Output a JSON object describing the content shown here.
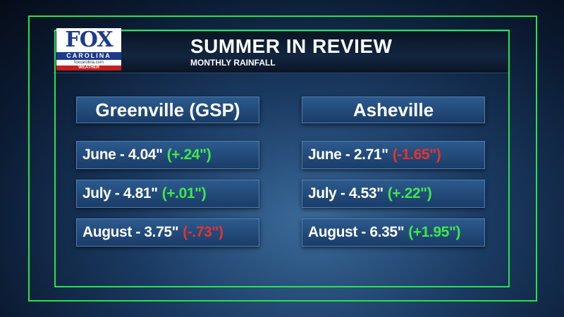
{
  "header": {
    "logo": {
      "brand": "FOX",
      "region": "CAROLINA",
      "site": "foxcarolina.com",
      "tag": "WEATHER"
    },
    "title": "SUMMER IN REVIEW",
    "subtitle": "MONTHLY RAINFALL"
  },
  "columns": [
    {
      "city": "Greenville (GSP)",
      "rows": [
        {
          "month_total": "June - 4.04\"",
          "departure": "(+.24\")",
          "color": "#3ee84a"
        },
        {
          "month_total": "July - 4.81\"",
          "departure": "(+.01\")",
          "color": "#3ee84a"
        },
        {
          "month_total": "August - 3.75\"",
          "departure": "(-.73\")",
          "color": "#e8322e"
        }
      ]
    },
    {
      "city": "Asheville",
      "rows": [
        {
          "month_total": "June - 2.71\"",
          "departure": "(-1.65\")",
          "color": "#e8322e"
        },
        {
          "month_total": "July - 4.53\"",
          "departure": "(+.22\")",
          "color": "#3ee84a"
        },
        {
          "month_total": "August - 6.35\"",
          "departure": "(+1.95\")",
          "color": "#3ee84a"
        }
      ]
    }
  ]
}
